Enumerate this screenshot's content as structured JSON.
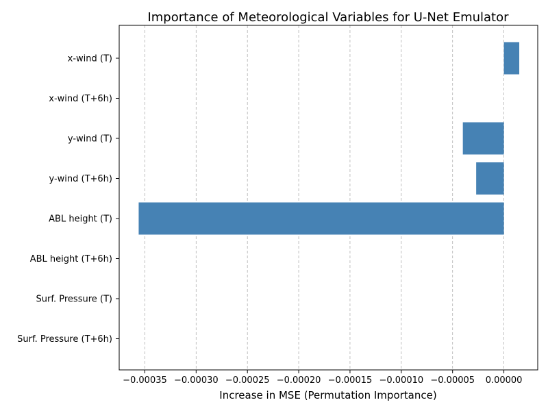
{
  "chart_data": {
    "type": "bar",
    "orientation": "horizontal",
    "title": "Importance of Meteorological Variables for U-Net Emulator",
    "xlabel": "Increase in MSE (Permutation Importance)",
    "ylabel": "",
    "categories": [
      "x-wind (T)",
      "x-wind (T+6h)",
      "y-wind (T)",
      "y-wind (T+6h)",
      "ABL height (T)",
      "ABL height (T+6h)",
      "Surf. Pressure (T)",
      "Surf. Pressure (T+6h)"
    ],
    "values": [
      1.5e-05,
      0.0,
      -4e-05,
      -2.7e-05,
      -0.000356,
      0.0,
      0.0,
      0.0
    ],
    "xlim": [
      -0.000375,
      3.3e-05
    ],
    "xticks": [
      -0.00035,
      -0.0003,
      -0.00025,
      -0.0002,
      -0.00015,
      -0.0001,
      -5e-05,
      0.0
    ],
    "xtick_labels": [
      "−0.00035",
      "−0.00030",
      "−0.00025",
      "−0.00020",
      "−0.00015",
      "−0.00010",
      "−0.00005",
      "0.00000"
    ],
    "grid": "x, dashed",
    "bar_color": "#4682b4"
  }
}
